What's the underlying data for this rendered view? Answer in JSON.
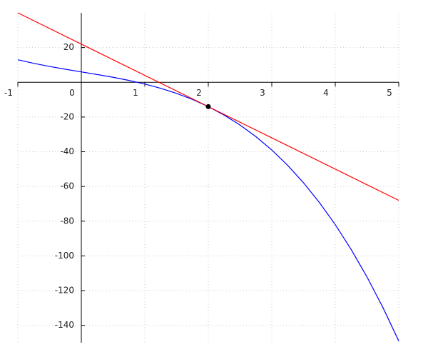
{
  "chart_data": {
    "type": "line",
    "xlim": [
      -1,
      5
    ],
    "ylim": [
      -150,
      40
    ],
    "xticks": [
      -1,
      0,
      1,
      2,
      3,
      4,
      5
    ],
    "yticks": [
      20,
      -20,
      -40,
      -60,
      -80,
      -100,
      -120,
      -140
    ],
    "grid": true,
    "series": [
      {
        "kind": "line",
        "color": "#0000ff",
        "x": [
          -1,
          -0.75,
          -0.5,
          -0.25,
          0,
          0.25,
          0.5,
          0.75,
          1,
          1.25,
          1.5,
          1.75,
          2,
          2.25,
          2.5,
          2.75,
          3,
          3.25,
          3.5,
          3.75,
          4,
          4.25,
          4.5,
          4.75,
          5
        ],
        "values": [
          13,
          10.921875,
          9.125,
          7.515625,
          6,
          4.484375,
          2.875,
          1.078125,
          -1,
          -3.453125,
          -6.375,
          -9.859375,
          -14,
          -18.890625,
          -24.625,
          -31.296875,
          -39,
          -47.828125,
          -57.875,
          -69.234375,
          -82,
          -96.265625,
          -112.125,
          -129.671875,
          -149
        ]
      },
      {
        "kind": "line",
        "color": "#ff0000",
        "x": [
          -1,
          5
        ],
        "values": [
          40,
          -68
        ]
      },
      {
        "kind": "marker",
        "color": "#000000",
        "x": [
          2
        ],
        "values": [
          -14
        ]
      }
    ]
  }
}
